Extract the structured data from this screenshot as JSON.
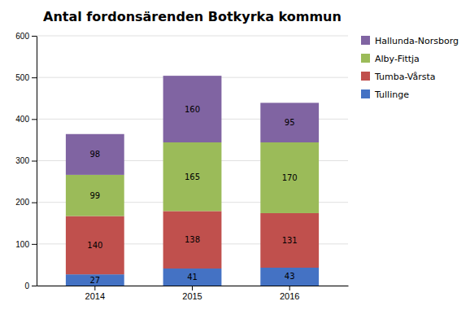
{
  "chart_data": {
    "type": "bar",
    "stacked": true,
    "title": "Antal fordonsärenden Botkyrka kommun",
    "categories": [
      "2014",
      "2015",
      "2016"
    ],
    "series": [
      {
        "name": "Tullinge",
        "color": "#4472C4",
        "values": [
          27,
          41,
          43
        ]
      },
      {
        "name": "Tumba-Vårsta",
        "color": "#C0504D",
        "values": [
          140,
          138,
          131
        ]
      },
      {
        "name": "Alby-Fittja",
        "color": "#9BBB59",
        "values": [
          99,
          165,
          170
        ]
      },
      {
        "name": "Hallunda-Norsborg",
        "color": "#8064A2",
        "values": [
          98,
          160,
          95
        ]
      }
    ],
    "ylim": [
      0,
      600
    ],
    "yticks": [
      0,
      100,
      200,
      300,
      400,
      500,
      600
    ],
    "grid": true,
    "data_labels": true,
    "legend": "right"
  }
}
